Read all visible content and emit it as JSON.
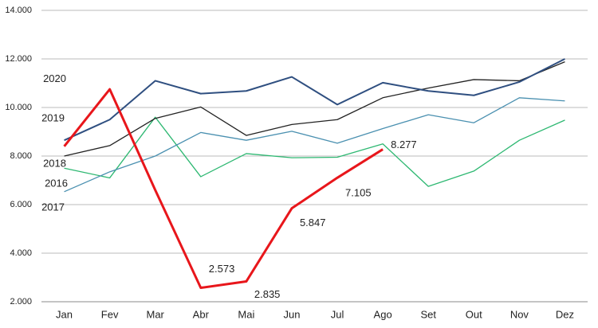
{
  "chart_data": {
    "type": "line",
    "categories": [
      "Jan",
      "Fev",
      "Mar",
      "Abr",
      "Mai",
      "Jun",
      "Jul",
      "Ago",
      "Set",
      "Out",
      "Nov",
      "Dez"
    ],
    "ylim": [
      2000,
      14000
    ],
    "yticks": [
      {
        "value": 2000,
        "label": "2.000"
      },
      {
        "value": 4000,
        "label": "4.000"
      },
      {
        "value": 6000,
        "label": "6.000"
      },
      {
        "value": 8000,
        "label": "8.000"
      },
      {
        "value": 10000,
        "label": "10.000"
      },
      {
        "value": 12000,
        "label": "12.000"
      },
      {
        "value": 14000,
        "label": "14.000"
      }
    ],
    "grid": true,
    "series": [
      {
        "name": "2016",
        "color": "#2eb872",
        "values": [
          7500,
          7100,
          9600,
          7150,
          8100,
          7930,
          7950,
          8500,
          6750,
          7380,
          8650,
          9480
        ]
      },
      {
        "name": "2017",
        "color": "#4a90b0",
        "values": [
          6530,
          7350,
          8000,
          8970,
          8650,
          9020,
          8530,
          9130,
          9700,
          9370,
          10400,
          10270
        ]
      },
      {
        "name": "2018",
        "color": "#222222",
        "values": [
          8000,
          8430,
          9550,
          10020,
          8850,
          9300,
          9500,
          10400,
          10800,
          11150,
          11100,
          11880
        ]
      },
      {
        "name": "2019",
        "color": "#2f4f80",
        "values": [
          8650,
          9500,
          11100,
          10570,
          10680,
          11260,
          10120,
          11020,
          10680,
          10500,
          11050,
          12000
        ]
      },
      {
        "name": "2020",
        "color": "#e8161b",
        "values": [
          8400,
          10750,
          6600,
          2573,
          2835,
          5847,
          7105,
          8277,
          null,
          null,
          null,
          null
        ],
        "value_labels": [
          null,
          null,
          null,
          "2.573",
          "2.835",
          "5.847",
          "7.105",
          "8.277",
          null,
          null,
          null,
          null
        ]
      }
    ]
  }
}
